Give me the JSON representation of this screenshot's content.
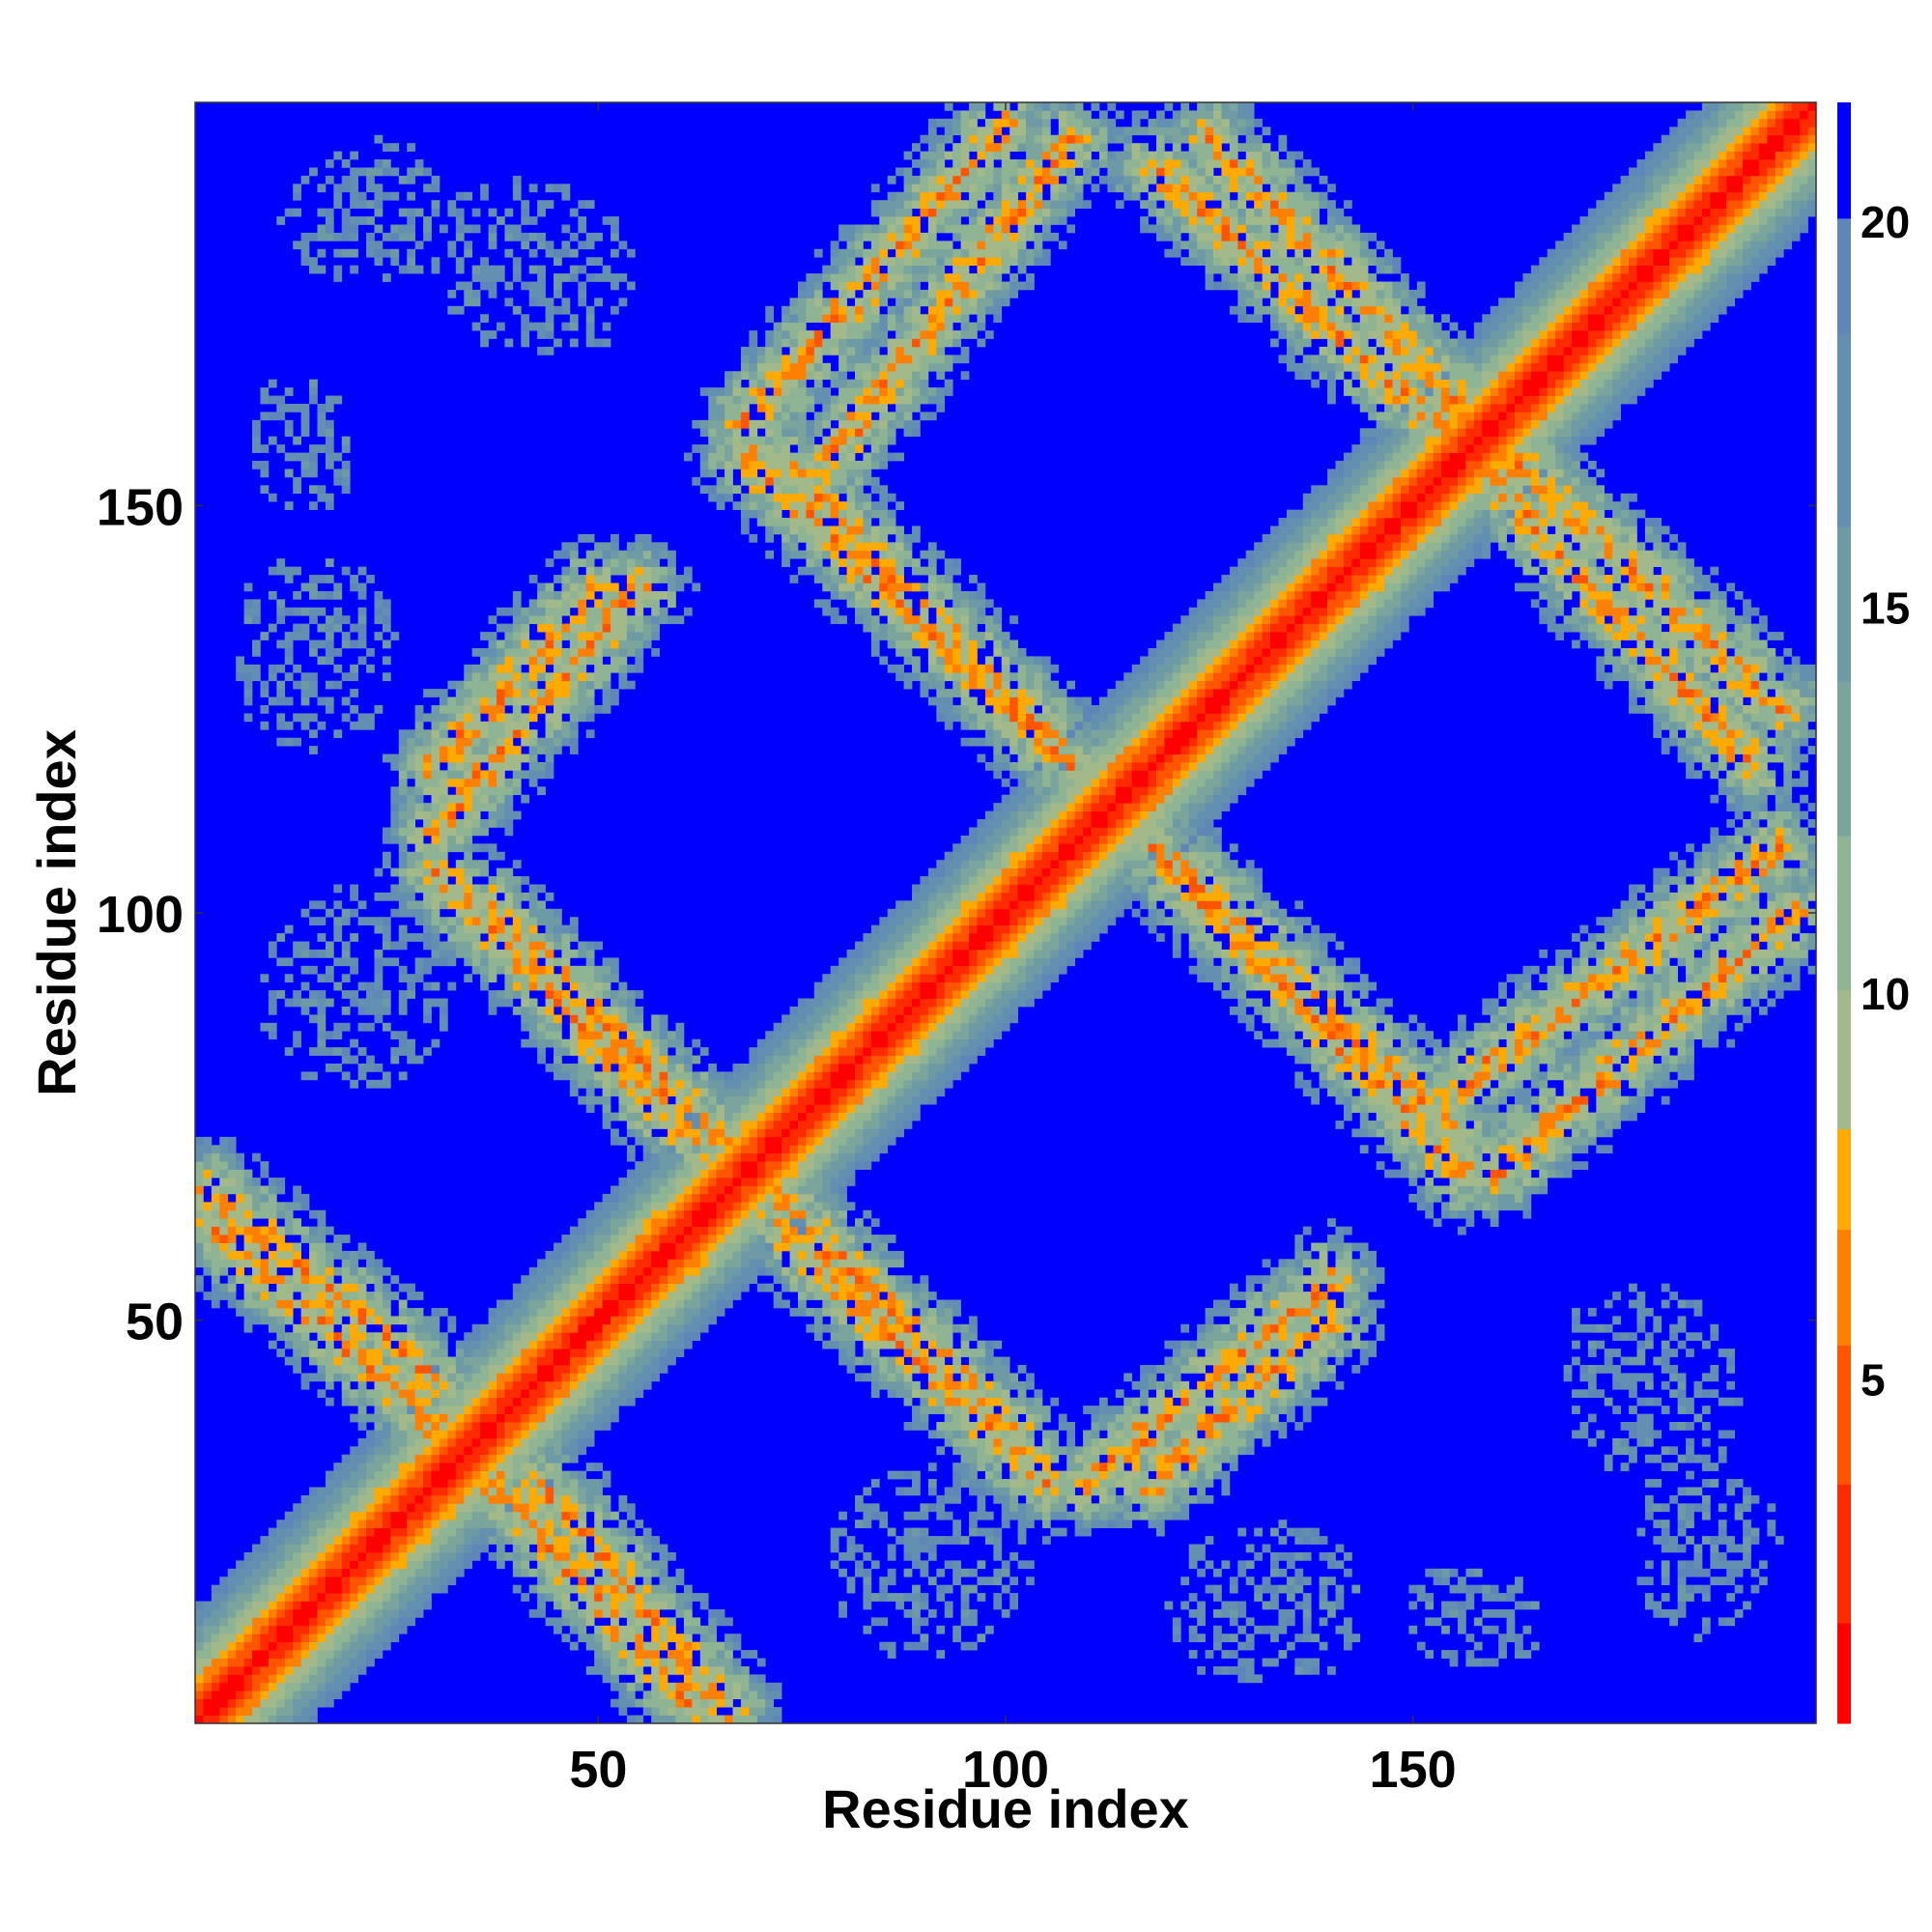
{
  "chart_data": {
    "type": "heatmap",
    "title": "",
    "xlabel": "Residue index",
    "ylabel": "Residue index",
    "xlim": [
      1,
      199
    ],
    "ylim": [
      1,
      199
    ],
    "x_ticks": [
      50,
      100,
      150
    ],
    "y_ticks": [
      50,
      100,
      150
    ],
    "colorbar": {
      "ticks": [
        5,
        10,
        15,
        20
      ],
      "range": [
        0.5,
        21.5
      ],
      "min_color": "#ff0000",
      "max_color": "#0000ff"
    },
    "colorscale": [
      {
        "max": 1.8,
        "color": "#ff0000"
      },
      {
        "max": 3.6,
        "color": "#ff2a00"
      },
      {
        "max": 5.4,
        "color": "#ff5500"
      },
      {
        "max": 6.9,
        "color": "#ff8000"
      },
      {
        "max": 8.2,
        "color": "#ffaa00"
      },
      {
        "max": 10.0,
        "color": "#a3b989"
      },
      {
        "max": 12.0,
        "color": "#8fb494"
      },
      {
        "max": 14.0,
        "color": "#7ba59c"
      },
      {
        "max": 16.0,
        "color": "#6d9aa5"
      },
      {
        "max": 18.5,
        "color": "#638fb0"
      },
      {
        "max": 20.0,
        "color": "#5e86b6"
      },
      {
        "max": 99.0,
        "color": "#0000ff"
      }
    ],
    "description_value": "Pairwise residue distance matrix (contact map); cells beyond ~20 shown in blue. Values encoded as band segments below.",
    "diagonal": {
      "from": 1,
      "to": 199
    },
    "bands": [
      {
        "i_start": 2,
        "j_start": 66,
        "i_end": 30,
        "j_end": 43,
        "width": 7
      },
      {
        "i_start": 30,
        "j_start": 38,
        "i_end": 62,
        "j_end": 2,
        "width": 7
      },
      {
        "i_start": 36,
        "j_start": 101,
        "i_end": 65,
        "j_end": 72,
        "width": 7
      },
      {
        "i_start": 30,
        "j_start": 118,
        "i_end": 50,
        "j_end": 140,
        "width": 7
      },
      {
        "i_start": 65,
        "j_start": 68,
        "i_end": 105,
        "j_end": 30,
        "width": 7
      },
      {
        "i_start": 68,
        "j_start": 160,
        "i_end": 100,
        "j_end": 197,
        "width": 7
      },
      {
        "i_start": 72,
        "j_start": 156,
        "i_end": 105,
        "j_end": 122,
        "width": 7
      },
      {
        "i_start": 110,
        "j_start": 30,
        "i_end": 140,
        "j_end": 55,
        "width": 7
      },
      {
        "i_start": 118,
        "j_start": 108,
        "i_end": 156,
        "j_end": 68,
        "width": 7
      },
      {
        "i_start": 125,
        "j_start": 195,
        "i_end": 160,
        "j_end": 158,
        "width": 7
      },
      {
        "i_start": 155,
        "j_start": 78,
        "i_end": 195,
        "j_end": 108,
        "width": 7
      },
      {
        "i_start": 158,
        "j_start": 155,
        "i_end": 192,
        "j_end": 118,
        "width": 7
      }
    ],
    "patches": [
      {
        "i": 23,
        "j": 186,
        "r": 9
      },
      {
        "i": 45,
        "j": 178,
        "r": 10
      },
      {
        "i": 13,
        "j": 160,
        "r": 6
      },
      {
        "i": 15,
        "j": 134,
        "r": 10
      },
      {
        "i": 20,
        "j": 90,
        "r": 12
      },
      {
        "i": 93,
        "j": 22,
        "r": 11
      },
      {
        "i": 130,
        "j": 15,
        "r": 10
      },
      {
        "i": 180,
        "j": 40,
        "r": 11
      },
      {
        "i": 185,
        "j": 18,
        "r": 7
      },
      {
        "i": 155,
        "j": 14,
        "r": 6
      },
      {
        "i": 115,
        "j": 113,
        "r": 12
      }
    ]
  }
}
